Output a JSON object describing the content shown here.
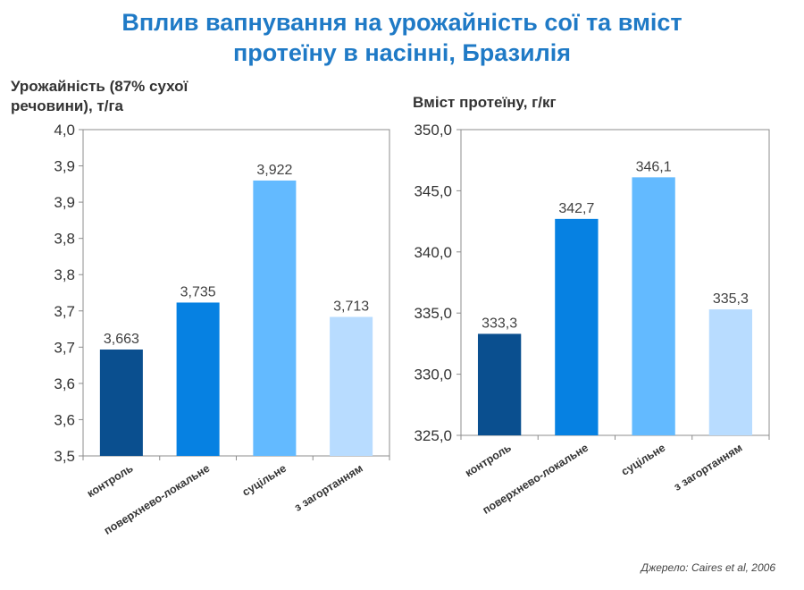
{
  "title_line1": "Вплив вапнування на урожайність сої та вміст",
  "title_line2": "протеїну в насінні, Бразилія",
  "source": "Джерело: Caires et al, 2006",
  "colors": [
    "#0a4f8f",
    "#0681e2",
    "#63baff",
    "#b8dcff"
  ],
  "chart_data": [
    {
      "type": "bar",
      "ylabel_line1": "Урожайність (87% сухої",
      "ylabel_line2": "речовини), т/га",
      "categories": [
        "контроль",
        "поверхнево-локальне",
        "суцільне",
        "з загортанням"
      ],
      "values": [
        3.663,
        3.735,
        3.922,
        3.713
      ],
      "value_labels": [
        "3,663",
        "3,735",
        "3,922",
        "3,713"
      ],
      "ylim": [
        3.5,
        4.0
      ],
      "yticks": [
        "3,5",
        "3,6",
        "3,6",
        "3,7",
        "3,7",
        "3,8",
        "3,8",
        "3,9",
        "3,9",
        "4,0"
      ],
      "grid": false
    },
    {
      "type": "bar",
      "ylabel_line1": "Вміст протеїну, г/кг",
      "categories": [
        "контроль",
        "поверхнево-локальне",
        "суцільне",
        "з загортанням"
      ],
      "values": [
        333.3,
        342.7,
        346.1,
        335.3
      ],
      "value_labels": [
        "333,3",
        "342,7",
        "346,1",
        "335,3"
      ],
      "ylim": [
        325,
        350
      ],
      "yticks": [
        "325,0",
        "330,0",
        "335,0",
        "340,0",
        "345,0",
        "350,0"
      ],
      "grid": false
    }
  ]
}
